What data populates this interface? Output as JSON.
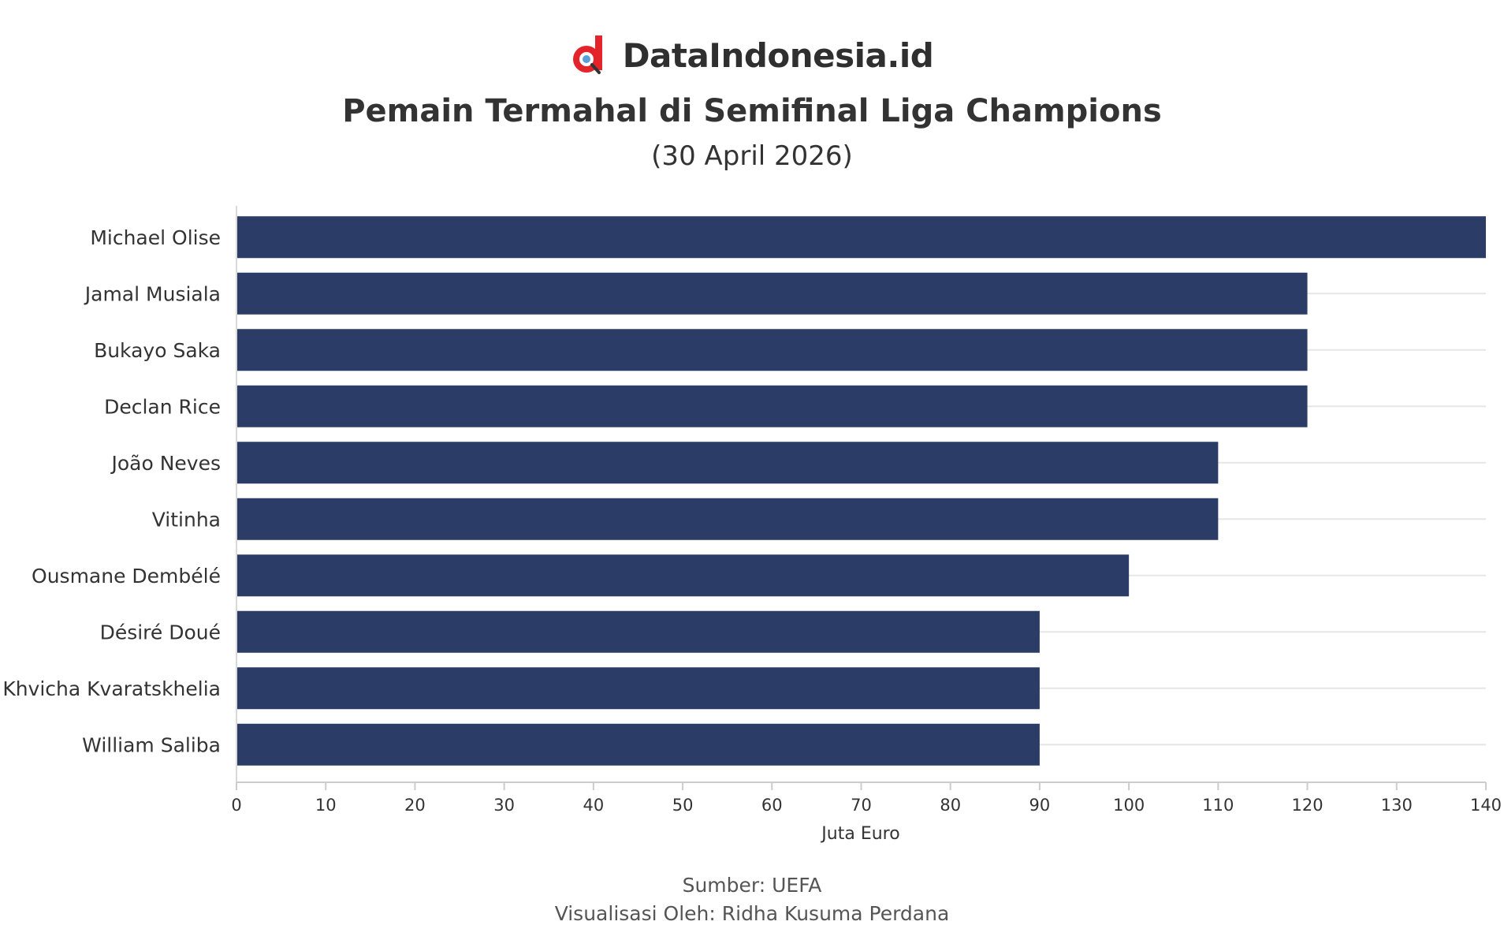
{
  "header": {
    "brand_name": "DataIndonesia.id",
    "brand_color": "#e3242b"
  },
  "chart_data": {
    "type": "bar",
    "orientation": "horizontal",
    "title": "Pemain Termahal di Semifinal Liga Champions",
    "subtitle": "(30 April 2026)",
    "xlabel": "Juta Euro",
    "ylabel": "",
    "xlim": [
      0,
      140
    ],
    "x_ticks": [
      0,
      10,
      20,
      30,
      40,
      50,
      60,
      70,
      80,
      90,
      100,
      110,
      120,
      130,
      140
    ],
    "grid": "horizontal",
    "bar_color": "#2b3d66",
    "categories": [
      "Michael Olise",
      "Jamal Musiala",
      "Bukayo Saka",
      "Declan Rice",
      "João Neves",
      "Vitinha",
      "Ousmane Dembélé",
      "Désiré Doué",
      "Khvicha Kvaratskhelia",
      "William Saliba"
    ],
    "values": [
      140,
      120,
      120,
      120,
      110,
      110,
      100,
      90,
      90,
      90
    ]
  },
  "footer": {
    "source": "Sumber: UEFA",
    "credit": "Visualisasi Oleh: Ridha Kusuma Perdana"
  }
}
